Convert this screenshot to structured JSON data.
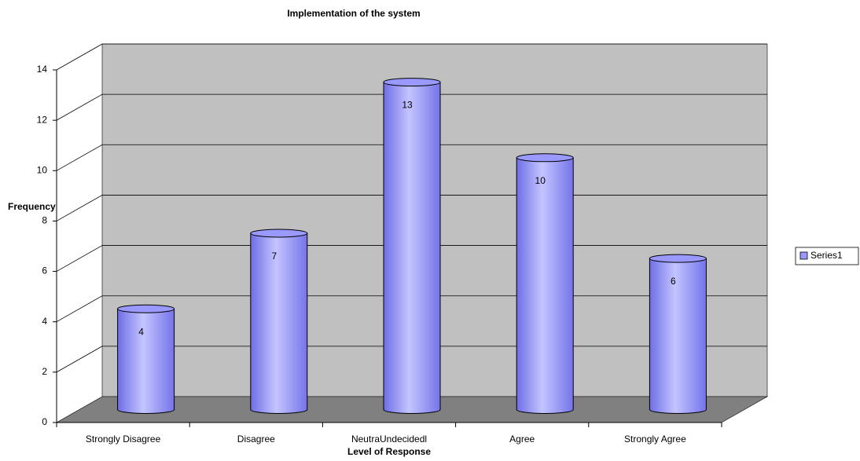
{
  "chart_data": {
    "type": "bar3d",
    "title": "Implementation of the system",
    "x_label": "Level of Response",
    "y_label": "Frequency",
    "categories": [
      "Strongly Disagree",
      "Disagree",
      "NeutraUndecidedl",
      "Agree",
      "Strongly Agree"
    ],
    "series": [
      {
        "name": "Series1",
        "color": "#9999ff",
        "values": [
          4,
          7,
          13,
          10,
          6
        ]
      }
    ],
    "ylim": [
      0,
      14
    ],
    "yticks": [
      0,
      2,
      4,
      6,
      8,
      10,
      12,
      14
    ],
    "grid": true,
    "legend": "right"
  }
}
